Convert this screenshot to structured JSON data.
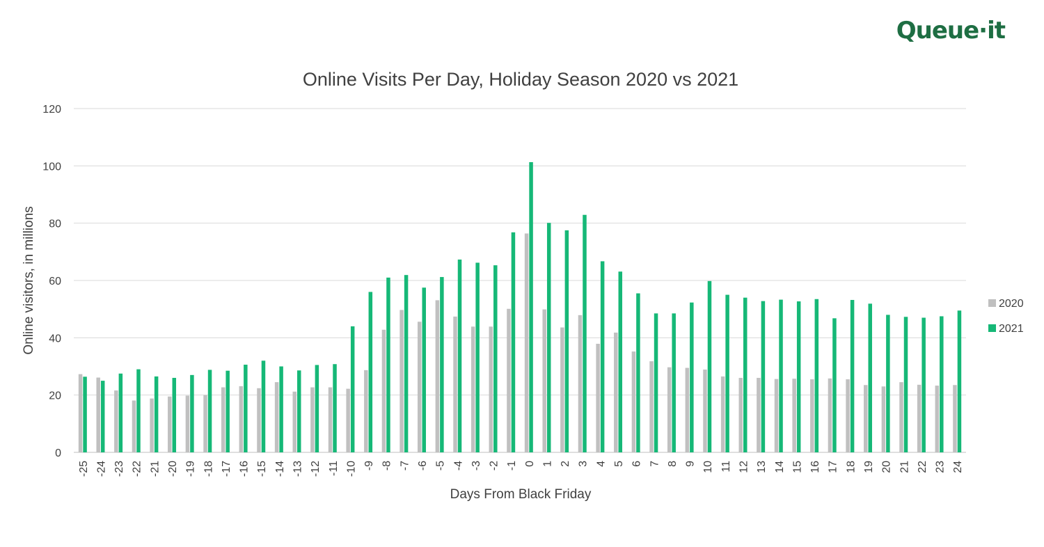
{
  "logo": {
    "text": "Queue·it",
    "color": "#1e6e43"
  },
  "chart_data": {
    "type": "bar",
    "title": "Online Visits Per Day, Holiday Season 2020 vs 2021",
    "xlabel": "Days From Black Friday",
    "ylabel": "Online visitors, in millions",
    "ylim": [
      0,
      120
    ],
    "yticks": [
      0,
      20,
      40,
      60,
      80,
      100,
      120
    ],
    "grid": true,
    "legend_position": "right",
    "categories": [
      "-25",
      "-24",
      "-23",
      "-22",
      "-21",
      "-20",
      "-19",
      "-18",
      "-17",
      "-16",
      "-15",
      "-14",
      "-13",
      "-12",
      "-11",
      "-10",
      "-9",
      "-8",
      "-7",
      "-6",
      "-5",
      "-4",
      "-3",
      "-2",
      "-1",
      "0",
      "1",
      "2",
      "3",
      "4",
      "5",
      "6",
      "7",
      "8",
      "9",
      "10",
      "11",
      "12",
      "13",
      "14",
      "15",
      "16",
      "17",
      "18",
      "19",
      "20",
      "21",
      "22",
      "23",
      "24"
    ],
    "series": [
      {
        "name": "2020",
        "color": "#c0c0c0",
        "values": [
          27.3,
          26.1,
          21.6,
          18.1,
          18.8,
          19.5,
          19.8,
          20.0,
          22.7,
          23.1,
          22.4,
          24.5,
          21.2,
          22.7,
          22.7,
          22.2,
          28.7,
          42.8,
          49.7,
          45.6,
          53.1,
          47.4,
          43.9,
          43.9,
          50.1,
          76.4,
          49.9,
          43.6,
          47.9,
          37.9,
          41.8,
          35.2,
          31.8,
          29.7,
          29.5,
          28.9,
          26.5,
          26.0,
          26.0,
          25.6,
          25.7,
          25.5,
          25.8,
          25.5,
          23.5,
          23.0,
          24.5,
          23.6,
          23.3,
          23.5
        ]
      },
      {
        "name": "2021",
        "color": "#16b877",
        "values": [
          26.4,
          25.0,
          27.5,
          29.0,
          26.5,
          26.0,
          27.0,
          28.8,
          28.5,
          30.6,
          32.0,
          30.0,
          28.6,
          30.5,
          30.8,
          44.0,
          56.0,
          61.0,
          61.9,
          57.5,
          61.2,
          67.3,
          66.2,
          65.3,
          76.8,
          101.3,
          80.1,
          77.5,
          82.9,
          66.7,
          63.1,
          55.5,
          48.5,
          48.5,
          52.3,
          59.8,
          55.0,
          54.0,
          52.8,
          53.3,
          52.7,
          53.5,
          46.8,
          53.2,
          51.9,
          48.0,
          47.3,
          47.0,
          47.5,
          49.5
        ]
      }
    ]
  }
}
